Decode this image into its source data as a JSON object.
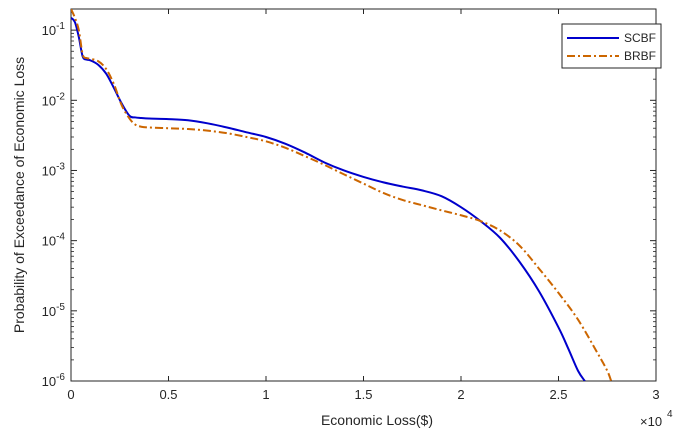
{
  "chart_data": {
    "type": "line",
    "title": "",
    "xlabel": "Economic Loss($)",
    "ylabel": "Probability of Exceedance of Economic Loss",
    "x_multiplier_label": "×10",
    "x_multiplier_exponent": "4",
    "xlim": [
      0,
      3
    ],
    "ylim": [
      1e-06,
      0.2
    ],
    "yscale": "log",
    "grid": false,
    "legend_position": "top-right",
    "x_ticks": [
      {
        "value": 0,
        "label": "0"
      },
      {
        "value": 0.5,
        "label": "0.5"
      },
      {
        "value": 1,
        "label": "1"
      },
      {
        "value": 1.5,
        "label": "1.5"
      },
      {
        "value": 2,
        "label": "2"
      },
      {
        "value": 2.5,
        "label": "2.5"
      },
      {
        "value": 3,
        "label": "3"
      }
    ],
    "y_ticks": [
      {
        "value": 0.1,
        "base": "10",
        "exp": "-1"
      },
      {
        "value": 0.01,
        "base": "10",
        "exp": "-2"
      },
      {
        "value": 0.001,
        "base": "10",
        "exp": "-3"
      },
      {
        "value": 0.0001,
        "base": "10",
        "exp": "-4"
      },
      {
        "value": 1e-05,
        "base": "10",
        "exp": "-5"
      },
      {
        "value": 1e-06,
        "base": "10",
        "exp": "-6"
      }
    ],
    "series": [
      {
        "name": "SCBF",
        "color": "#0000cc",
        "style": "solid",
        "x": [
          0,
          0.02,
          0.04,
          0.06,
          0.08,
          0.1,
          0.14,
          0.18,
          0.22,
          0.26,
          0.3,
          0.33,
          0.36,
          0.4,
          0.5,
          0.6,
          0.7,
          0.8,
          0.9,
          1.0,
          1.1,
          1.2,
          1.3,
          1.4,
          1.5,
          1.6,
          1.7,
          1.8,
          1.9,
          2.0,
          2.1,
          2.2,
          2.3,
          2.4,
          2.5,
          2.55,
          2.6,
          2.635
        ],
        "y": [
          0.15,
          0.13,
          0.08,
          0.042,
          0.038,
          0.037,
          0.032,
          0.024,
          0.015,
          0.009,
          0.006,
          0.0057,
          0.0056,
          0.0055,
          0.0054,
          0.0052,
          0.0047,
          0.0041,
          0.0035,
          0.003,
          0.0024,
          0.0018,
          0.0013,
          0.001,
          0.00081,
          0.00068,
          0.00059,
          0.00052,
          0.00043,
          0.0003,
          0.00019,
          0.00011,
          5e-05,
          1.9e-05,
          5.8e-06,
          2.9e-06,
          1.4e-06,
          1e-06
        ]
      },
      {
        "name": "BRBF",
        "color": "#cc6600",
        "style": "dashdot",
        "x": [
          0,
          0.02,
          0.04,
          0.06,
          0.08,
          0.1,
          0.14,
          0.18,
          0.22,
          0.26,
          0.3,
          0.33,
          0.36,
          0.4,
          0.5,
          0.6,
          0.7,
          0.8,
          0.9,
          1.0,
          1.1,
          1.2,
          1.3,
          1.4,
          1.5,
          1.6,
          1.7,
          1.8,
          1.9,
          2.0,
          2.1,
          2.2,
          2.3,
          2.4,
          2.5,
          2.6,
          2.7,
          2.75,
          2.77
        ],
        "y": [
          0.2,
          0.15,
          0.1,
          0.045,
          0.04,
          0.039,
          0.036,
          0.028,
          0.017,
          0.0085,
          0.0055,
          0.0045,
          0.0042,
          0.0041,
          0.004,
          0.0039,
          0.0037,
          0.0034,
          0.003,
          0.0026,
          0.0021,
          0.0016,
          0.0012,
          0.00088,
          0.00065,
          0.00048,
          0.00038,
          0.00032,
          0.00027,
          0.00023,
          0.00019,
          0.00014,
          8.5e-05,
          4e-05,
          1.8e-05,
          7.5e-06,
          2.5e-06,
          1.4e-06,
          1e-06
        ]
      }
    ]
  }
}
